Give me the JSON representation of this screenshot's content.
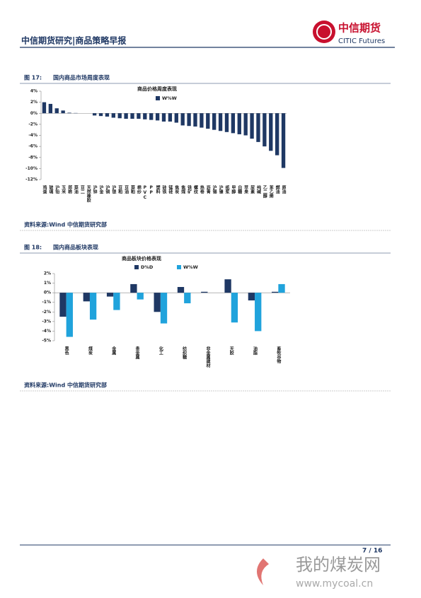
{
  "header": {
    "title": "中信期货研究|商品策略早报",
    "brand_cn": "中信期货",
    "brand_en": "CITIC Futures"
  },
  "figures": [
    {
      "label": "图 17:",
      "caption": "国内商品市场周度表现",
      "source": "资料来源:Wind 中信期货研究部"
    },
    {
      "label": "图 18:",
      "caption": "国内商品板块表现",
      "source": "资料来源:Wind 中信期货研究部"
    }
  ],
  "chart_data": [
    {
      "type": "bar",
      "title": "商品价格周度表现",
      "categories": [
        "鸡蛋",
        "玻璃",
        "沪铅",
        "玉米",
        "郑棉",
        "菜油",
        "豆二",
        "天然橡胶",
        "沪锌",
        "沪金",
        "沪铜",
        "沪银",
        "豆粕",
        "豆油",
        "菜粕",
        "棉纱",
        "PVC",
        "PP",
        "塑料",
        "硅铁",
        "锰硅",
        "焦炭",
        "焦煤",
        "铁矿",
        "螺纹",
        "热卷",
        "沥青",
        "沪锡",
        "沪镍",
        "纸浆",
        "甲醇",
        "白糖",
        "苹果",
        "尿素",
        "纯碱",
        "乙二醇",
        "苯乙烯",
        "燃油",
        "原油"
      ],
      "series": [
        {
          "name": "W%W",
          "color": "#1f3864",
          "values": [
            2.0,
            1.7,
            0.9,
            0.5,
            0.1,
            0.05,
            0,
            0,
            -0.4,
            -0.5,
            -0.6,
            -0.8,
            -0.9,
            -1.0,
            -1.0,
            -1.0,
            -1.1,
            -1.2,
            -1.3,
            -1.5,
            -1.5,
            -1.7,
            -2.2,
            -2.3,
            -2.4,
            -2.6,
            -2.8,
            -3.0,
            -3.2,
            -3.4,
            -3.6,
            -3.8,
            -4.0,
            -4.6,
            -5.2,
            -6.0,
            -6.8,
            -7.6,
            -9.9
          ]
        }
      ],
      "ylim": [
        -12,
        4
      ],
      "yticks": [
        {
          "value": 4,
          "label": "4%"
        },
        {
          "value": 2,
          "label": "2%"
        },
        {
          "value": 0,
          "label": "0%"
        },
        {
          "value": -2,
          "label": "-2%"
        },
        {
          "value": -4,
          "label": "-4%"
        },
        {
          "value": -6,
          "label": "-6%"
        },
        {
          "value": -8,
          "label": "-8%"
        },
        {
          "value": -10,
          "label": "-10%"
        },
        {
          "value": -12,
          "label": "-12%"
        }
      ]
    },
    {
      "type": "bar",
      "title": "商品板块价格表现",
      "categories": [
        "黑色",
        "煤炭",
        "金属",
        "贵金属",
        "化工",
        "纺织糖",
        "非金属建材",
        "天胶",
        "油脂",
        "畜牧谷物"
      ],
      "series": [
        {
          "name": "D%D",
          "color": "#1f3864",
          "values": [
            -2.5,
            -0.9,
            -0.4,
            0.9,
            -2.0,
            0.6,
            0.1,
            1.4,
            -0.8,
            0.1
          ]
        },
        {
          "name": "W%W",
          "color": "#20a3dc",
          "values": [
            -4.6,
            -2.8,
            -1.8,
            -0.7,
            -3.2,
            -1.1,
            0,
            -3.1,
            -4.0,
            0.9
          ]
        }
      ],
      "ylim": [
        -5,
        2
      ],
      "yticks": [
        {
          "value": 2,
          "label": "2%"
        },
        {
          "value": 1,
          "label": "1%"
        },
        {
          "value": 0,
          "label": "0%"
        },
        {
          "value": -1,
          "label": "-1%"
        },
        {
          "value": -2,
          "label": "-2%"
        },
        {
          "value": -3,
          "label": "-3%"
        },
        {
          "value": -4,
          "label": "-4%"
        },
        {
          "value": -5,
          "label": "-5%"
        }
      ]
    }
  ],
  "footer": {
    "page": "7 / 16"
  },
  "watermark": {
    "cn": "我的煤炭网",
    "url": "www.mycoal.cn"
  }
}
